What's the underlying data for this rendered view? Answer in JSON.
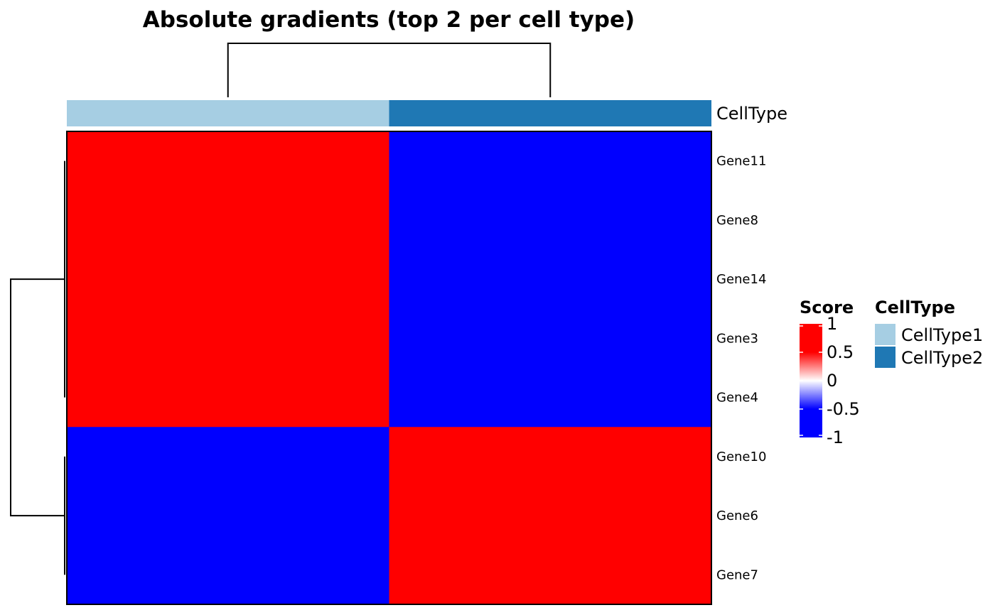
{
  "chart_data": {
    "type": "heatmap",
    "title": "Absolute gradients (top 2 per cell type)",
    "columns": [
      "CellType1",
      "CellType2"
    ],
    "rows": [
      "Gene11",
      "Gene8",
      "Gene14",
      "Gene3",
      "Gene4",
      "Gene10",
      "Gene6",
      "Gene7"
    ],
    "values": [
      [
        1,
        -1
      ],
      [
        1,
        -1
      ],
      [
        1,
        -1
      ],
      [
        1,
        -1
      ],
      [
        1,
        -1
      ],
      [
        -1,
        1
      ],
      [
        -1,
        1
      ],
      [
        -1,
        1
      ]
    ],
    "column_annotation": {
      "name": "CellType",
      "levels": [
        "CellType1",
        "CellType2"
      ],
      "colors": [
        "#a6cee3",
        "#1f78b4"
      ]
    },
    "color_scale": {
      "name": "Score",
      "min": -1,
      "max": 1,
      "low_color": "#0000ff",
      "mid_color": "#ffffff",
      "high_color": "#ff0000",
      "ticks": [
        1,
        0.5,
        0,
        -0.5,
        -1
      ],
      "tick_labels": [
        "1",
        "0.5",
        "0",
        "-0.5",
        "-1"
      ]
    },
    "legends": {
      "score_title": "Score",
      "celltype_title": "CellType"
    },
    "row_dendrogram": true,
    "column_dendrogram": true
  }
}
